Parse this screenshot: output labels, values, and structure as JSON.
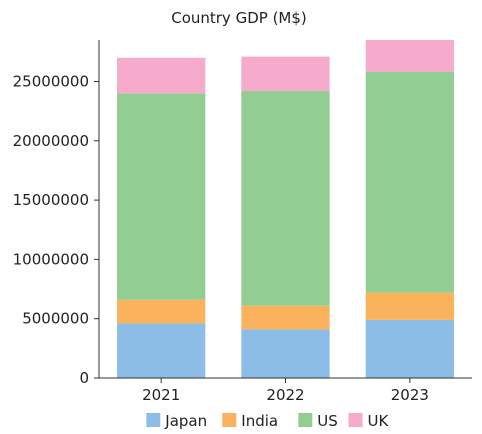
{
  "chart_data": {
    "type": "bar",
    "stacked": true,
    "title": "Country GDP (M$)",
    "categories": [
      "2021",
      "2022",
      "2023"
    ],
    "series": [
      {
        "name": "Japan",
        "color": "#8bbde6",
        "values": [
          4600000,
          4100000,
          4900000
        ]
      },
      {
        "name": "India",
        "color": "#fbb25c",
        "values": [
          2000000,
          2000000,
          2300000
        ]
      },
      {
        "name": "US",
        "color": "#92cd93",
        "values": [
          17400000,
          18100000,
          18600000
        ]
      },
      {
        "name": "UK",
        "color": "#f6abcc",
        "values": [
          3000000,
          2900000,
          2700000
        ]
      }
    ],
    "ylim": [
      0,
      28500000
    ],
    "yticks": [
      0,
      5000000,
      10000000,
      15000000,
      20000000,
      25000000
    ],
    "ytick_labels": [
      "0",
      "5000000",
      "10000000",
      "15000000",
      "20000000",
      "25000000"
    ],
    "grid": false,
    "legend_position": "bottom"
  }
}
